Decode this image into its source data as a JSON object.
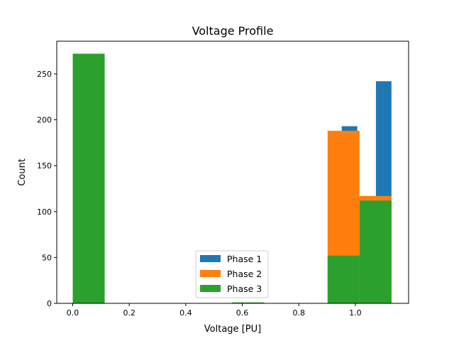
{
  "chart_data": {
    "type": "bar",
    "title": "Voltage Profile",
    "xlabel": "Voltage [PU]",
    "ylabel": "Count",
    "xlim": [
      -0.0566,
      1.1886
    ],
    "ylim": [
      0,
      285.6
    ],
    "xticks": [
      0.0,
      0.2,
      0.4,
      0.6,
      0.8,
      1.0
    ],
    "xtick_labels": [
      "0.0",
      "0.2",
      "0.4",
      "0.6",
      "0.8",
      "1.0"
    ],
    "yticks": [
      0,
      50,
      100,
      150,
      200,
      250
    ],
    "ytick_labels": [
      "0",
      "50",
      "100",
      "150",
      "200",
      "250"
    ],
    "grid": false,
    "legend_position": "bottom-center",
    "series": [
      {
        "name": "Phase 1",
        "color": "#1f77b4",
        "bins": [
          {
            "x0": 0.952,
            "x1": 1.007,
            "count": 193
          },
          {
            "x0": 1.073,
            "x1": 1.128,
            "count": 242
          }
        ]
      },
      {
        "name": "Phase 2",
        "color": "#ff7f0e",
        "bins": [
          {
            "x0": 0.902,
            "x1": 1.015,
            "count": 188
          },
          {
            "x0": 1.015,
            "x1": 1.128,
            "count": 117
          }
        ]
      },
      {
        "name": "Phase 3",
        "color": "#2ca02c",
        "bins": [
          {
            "x0": 0.0,
            "x1": 0.113,
            "count": 272
          },
          {
            "x0": 0.564,
            "x1": 0.677,
            "count": 1
          },
          {
            "x0": 0.902,
            "x1": 1.015,
            "count": 52
          },
          {
            "x0": 1.015,
            "x1": 1.128,
            "count": 112
          }
        ]
      }
    ]
  }
}
